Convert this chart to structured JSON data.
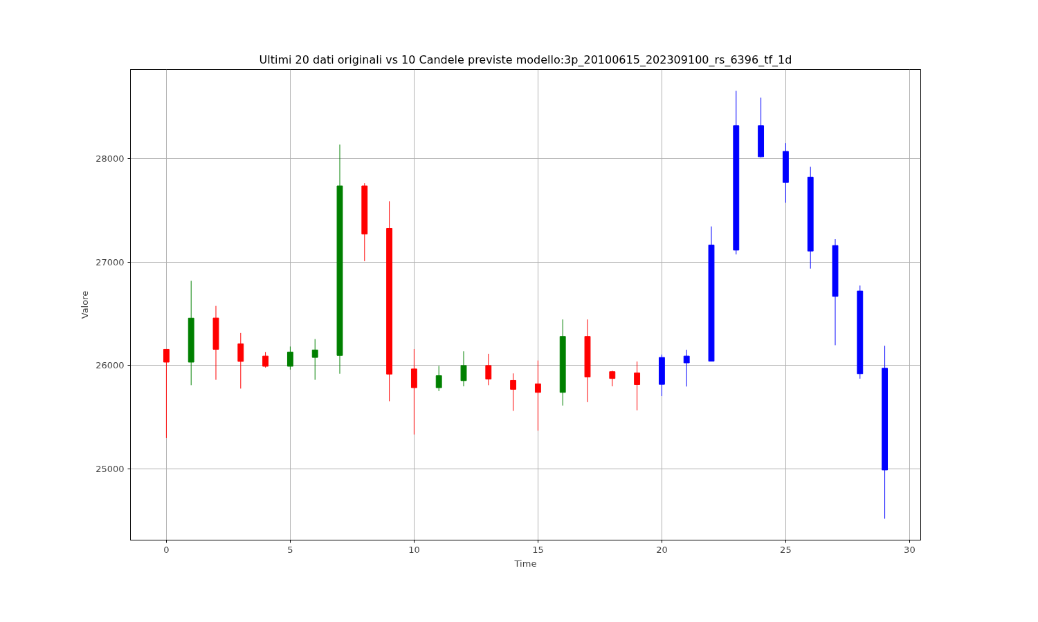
{
  "chart_data": {
    "type": "candlestick",
    "title": "Ultimi 20 dati originali vs 10 Candele previste modello:3p_20100615_202309100_rs_6396_tf_1d",
    "xlabel": "Time",
    "ylabel": "Valore",
    "x": [
      0,
      1,
      2,
      3,
      4,
      5,
      6,
      7,
      8,
      9,
      10,
      11,
      12,
      13,
      14,
      15,
      16,
      17,
      18,
      19,
      20,
      21,
      22,
      23,
      24,
      25,
      26,
      27,
      28,
      29
    ],
    "ohlc": [
      [
        26157,
        26157,
        25298,
        26033
      ],
      [
        26033,
        26820,
        25810,
        26459
      ],
      [
        26460,
        26577,
        25862,
        26157
      ],
      [
        26210,
        26315,
        25777,
        26040
      ],
      [
        26092,
        26131,
        25980,
        25993
      ],
      [
        25993,
        26184,
        25961,
        26131
      ],
      [
        26079,
        26256,
        25862,
        26151
      ],
      [
        26098,
        28138,
        25921,
        27738
      ],
      [
        27738,
        27764,
        27010,
        27272
      ],
      [
        27327,
        27589,
        25655,
        25917
      ],
      [
        25967,
        26160,
        25333,
        25786
      ],
      [
        25786,
        25996,
        25753,
        25902
      ],
      [
        25854,
        26138,
        25799,
        26000
      ],
      [
        26000,
        26114,
        25810,
        25869
      ],
      [
        25856,
        25924,
        25561,
        25770
      ],
      [
        25823,
        26049,
        25370,
        25740
      ],
      [
        25740,
        26446,
        25613,
        26282
      ],
      [
        26282,
        26446,
        25646,
        25889
      ],
      [
        25941,
        25950,
        25799,
        25875
      ],
      [
        25928,
        26039,
        25567,
        25816
      ],
      [
        25818,
        26106,
        25705,
        26078
      ],
      [
        26026,
        26153,
        25797,
        26092
      ],
      [
        26042,
        27346,
        26042,
        27166
      ],
      [
        27117,
        28658,
        27075,
        28321
      ],
      [
        28321,
        28592,
        28014,
        28020
      ],
      [
        28072,
        28152,
        27575,
        27771
      ],
      [
        27823,
        27923,
        26938,
        27108
      ],
      [
        27161,
        27223,
        26197,
        26669
      ],
      [
        26721,
        26774,
        25873,
        25921
      ],
      [
        25974,
        26191,
        24518,
        24990
      ]
    ],
    "colors": [
      "#ff0000",
      "#008000",
      "#ff0000",
      "#ff0000",
      "#ff0000",
      "#008000",
      "#008000",
      "#008000",
      "#ff0000",
      "#ff0000",
      "#ff0000",
      "#008000",
      "#008000",
      "#ff0000",
      "#ff0000",
      "#ff0000",
      "#008000",
      "#ff0000",
      "#ff0000",
      "#ff0000",
      "#0000ff",
      "#0000ff",
      "#0000ff",
      "#0000ff",
      "#0000ff",
      "#0000ff",
      "#0000ff",
      "#0000ff",
      "#0000ff",
      "#0000ff"
    ],
    "xlim": [
      -1.45,
      30.45
    ],
    "ylim": [
      24311,
      28865
    ],
    "xticks": [
      0,
      5,
      10,
      15,
      20,
      25,
      30
    ],
    "yticks": [
      25000,
      26000,
      27000,
      28000
    ],
    "grid": true
  }
}
